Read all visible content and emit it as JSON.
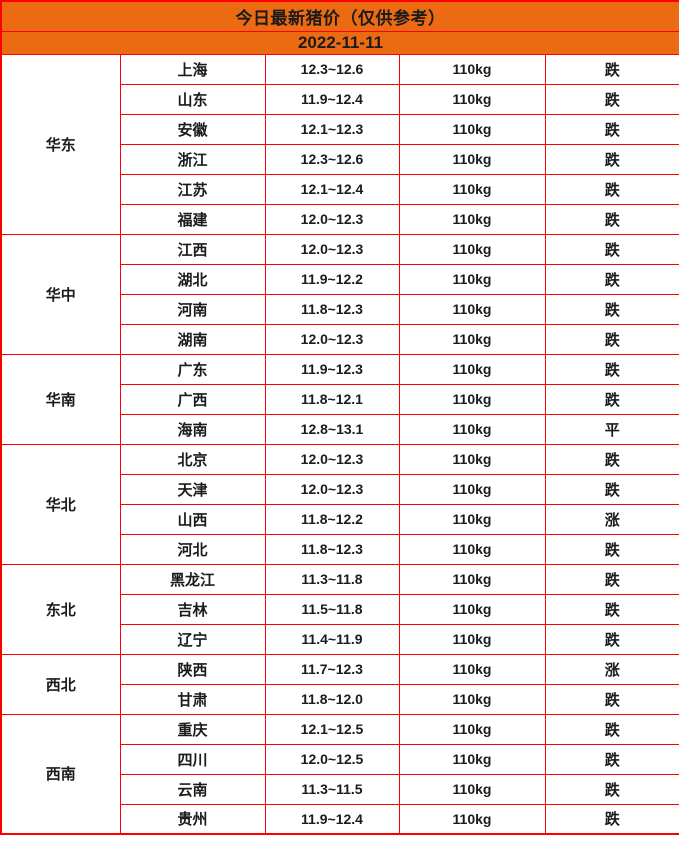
{
  "header": {
    "title": "今日最新猪价（仅供参考）",
    "date": "2022-11-11"
  },
  "colors": {
    "header_bg": "#EC6A12",
    "border": "#FE0000",
    "fall": "#00C800",
    "rise": "#FF3A45",
    "flat": "#111111",
    "text": "#1B1B1B"
  },
  "chart_data": {
    "type": "table",
    "title": "今日最新猪价（仅供参考）",
    "date": "2022-11-11",
    "legend": {
      "fall_label": "跌",
      "rise_label": "涨",
      "flat_label": "平"
    },
    "regions": [
      {
        "name": "华东",
        "rows": [
          {
            "province": "上海",
            "price": "12.3~12.6",
            "weight": "110kg",
            "trend": "跌",
            "trend_type": "fall"
          },
          {
            "province": "山东",
            "price": "11.9~12.4",
            "weight": "110kg",
            "trend": "跌",
            "trend_type": "fall"
          },
          {
            "province": "安徽",
            "price": "12.1~12.3",
            "weight": "110kg",
            "trend": "跌",
            "trend_type": "fall"
          },
          {
            "province": "浙江",
            "price": "12.3~12.6",
            "weight": "110kg",
            "trend": "跌",
            "trend_type": "fall"
          },
          {
            "province": "江苏",
            "price": "12.1~12.4",
            "weight": "110kg",
            "trend": "跌",
            "trend_type": "fall"
          },
          {
            "province": "福建",
            "price": "12.0~12.3",
            "weight": "110kg",
            "trend": "跌",
            "trend_type": "fall"
          }
        ]
      },
      {
        "name": "华中",
        "rows": [
          {
            "province": "江西",
            "price": "12.0~12.3",
            "weight": "110kg",
            "trend": "跌",
            "trend_type": "fall"
          },
          {
            "province": "湖北",
            "price": "11.9~12.2",
            "weight": "110kg",
            "trend": "跌",
            "trend_type": "fall"
          },
          {
            "province": "河南",
            "price": "11.8~12.3",
            "weight": "110kg",
            "trend": "跌",
            "trend_type": "fall"
          },
          {
            "province": "湖南",
            "price": "12.0~12.3",
            "weight": "110kg",
            "trend": "跌",
            "trend_type": "fall"
          }
        ]
      },
      {
        "name": "华南",
        "rows": [
          {
            "province": "广东",
            "price": "11.9~12.3",
            "weight": "110kg",
            "trend": "跌",
            "trend_type": "fall"
          },
          {
            "province": "广西",
            "price": "11.8~12.1",
            "weight": "110kg",
            "trend": "跌",
            "trend_type": "fall"
          },
          {
            "province": "海南",
            "price": "12.8~13.1",
            "weight": "110kg",
            "trend": "平",
            "trend_type": "flat"
          }
        ]
      },
      {
        "name": "华北",
        "rows": [
          {
            "province": "北京",
            "price": "12.0~12.3",
            "weight": "110kg",
            "trend": "跌",
            "trend_type": "fall"
          },
          {
            "province": "天津",
            "price": "12.0~12.3",
            "weight": "110kg",
            "trend": "跌",
            "trend_type": "fall"
          },
          {
            "province": "山西",
            "price": "11.8~12.2",
            "weight": "110kg",
            "trend": "涨",
            "trend_type": "rise"
          },
          {
            "province": "河北",
            "price": "11.8~12.3",
            "weight": "110kg",
            "trend": "跌",
            "trend_type": "fall"
          }
        ]
      },
      {
        "name": "东北",
        "rows": [
          {
            "province": "黑龙江",
            "price": "11.3~11.8",
            "weight": "110kg",
            "trend": "跌",
            "trend_type": "fall"
          },
          {
            "province": "吉林",
            "price": "11.5~11.8",
            "weight": "110kg",
            "trend": "跌",
            "trend_type": "fall"
          },
          {
            "province": "辽宁",
            "price": "11.4~11.9",
            "weight": "110kg",
            "trend": "跌",
            "trend_type": "fall"
          }
        ]
      },
      {
        "name": "西北",
        "rows": [
          {
            "province": "陕西",
            "price": "11.7~12.3",
            "weight": "110kg",
            "trend": "涨",
            "trend_type": "rise"
          },
          {
            "province": "甘肃",
            "price": "11.8~12.0",
            "weight": "110kg",
            "trend": "跌",
            "trend_type": "fall"
          }
        ]
      },
      {
        "name": "西南",
        "rows": [
          {
            "province": "重庆",
            "price": "12.1~12.5",
            "weight": "110kg",
            "trend": "跌",
            "trend_type": "fall"
          },
          {
            "province": "四川",
            "price": "12.0~12.5",
            "weight": "110kg",
            "trend": "跌",
            "trend_type": "fall"
          },
          {
            "province": "云南",
            "price": "11.3~11.5",
            "weight": "110kg",
            "trend": "跌",
            "trend_type": "fall"
          },
          {
            "province": "贵州",
            "price": "11.9~12.4",
            "weight": "110kg",
            "trend": "跌",
            "trend_type": "fall"
          }
        ]
      }
    ]
  }
}
